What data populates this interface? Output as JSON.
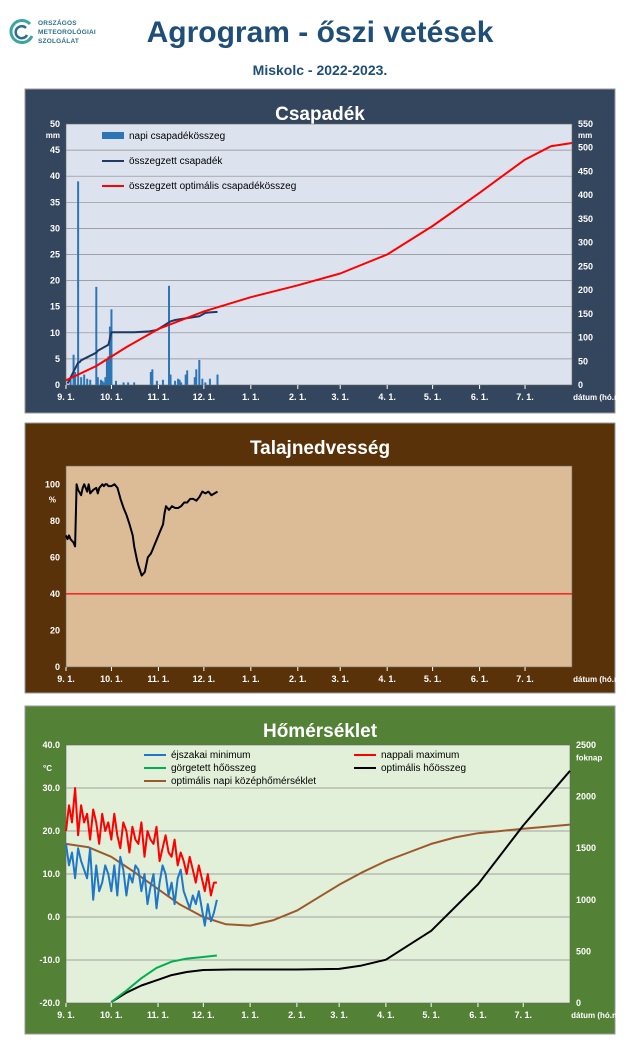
{
  "header": {
    "logo_lines": [
      "ORSZÁGOS",
      "METEOROLÓGIAI",
      "SZOLGÁLAT"
    ],
    "title": "Agrogram - őszi vetések",
    "subtitle": "Miskolc - 2022-2023."
  },
  "x_axis": {
    "tick_labels": [
      "9. 1.",
      "10. 1.",
      "11. 1.",
      "12. 1.",
      "1. 1.",
      "2. 1.",
      "3. 1.",
      "4. 1.",
      "5. 1.",
      "6. 1.",
      "7. 1."
    ],
    "tick_days": [
      0,
      30,
      61,
      91,
      122,
      153,
      181,
      212,
      242,
      273,
      303
    ],
    "range_days": [
      0,
      334
    ],
    "label": "dátum (hó.nap)"
  },
  "chart_data": [
    {
      "type": "bar+line",
      "title": "Csapadék",
      "y_label": "mm",
      "y2_label": "mm",
      "ylim": [
        0,
        50
      ],
      "yticks": [
        0,
        5,
        10,
        15,
        20,
        25,
        30,
        35,
        40,
        45,
        50
      ],
      "y2lim": [
        0,
        550
      ],
      "y2ticks": [
        0,
        50,
        100,
        150,
        200,
        250,
        300,
        350,
        400,
        450,
        500,
        550
      ],
      "grid": true,
      "legend_position": "top-left",
      "colors": {
        "bars": "#2e75b6",
        "cumulative": "#1f3864",
        "optimal": "#ff0000",
        "background": "#dde3ee",
        "frame": "#34465e"
      },
      "series": [
        {
          "name": "napi csapadékösszeg",
          "kind": "bar",
          "axis": "left",
          "x": [
            3,
            5,
            6,
            8,
            10,
            12,
            14,
            16,
            20,
            21,
            23,
            24,
            25,
            26,
            27,
            28,
            29,
            30,
            33,
            38,
            41,
            45,
            56,
            57,
            60,
            64,
            68,
            69,
            72,
            74,
            75,
            76,
            79,
            80,
            85,
            86,
            88,
            90,
            92,
            95,
            100
          ],
          "values": [
            1.2,
            5.8,
            2.5,
            39.0,
            1.5,
            2.0,
            1.2,
            1.0,
            18.8,
            1.5,
            1.0,
            0.8,
            0.5,
            1.5,
            5.0,
            5.5,
            11.2,
            14.5,
            0.8,
            0.5,
            0.5,
            0.5,
            2.5,
            3.0,
            0.8,
            1.0,
            19.0,
            2.0,
            0.8,
            1.2,
            1.0,
            0.5,
            2.0,
            2.8,
            1.5,
            3.0,
            4.8,
            1.2,
            0.5,
            1.2,
            2.0
          ]
        },
        {
          "name": "összegzett csapadék",
          "kind": "line",
          "axis": "right",
          "x": [
            1,
            8,
            9,
            10,
            20,
            21,
            28,
            29,
            30,
            45,
            55,
            60,
            68,
            69,
            72,
            80,
            88,
            92,
            95,
            100
          ],
          "y": [
            3,
            47,
            48,
            52,
            68,
            72,
            85,
            98,
            111,
            111,
            113,
            116,
            132,
            134,
            137,
            141,
            145,
            152,
            153,
            154
          ]
        },
        {
          "name": "összegzett optimális  csapadékösszeg",
          "kind": "line",
          "axis": "right",
          "x": [
            0,
            20,
            40,
            61,
            91,
            122,
            153,
            181,
            212,
            242,
            273,
            303,
            320,
            334
          ],
          "y": [
            10,
            40,
            80,
            118,
            155,
            185,
            210,
            235,
            275,
            335,
            405,
            475,
            503,
            510
          ]
        }
      ]
    },
    {
      "type": "line",
      "title": "Talajnedvesség",
      "y_label": "%",
      "ylim": [
        0,
        110
      ],
      "yticks": [
        0,
        20,
        40,
        60,
        80,
        100
      ],
      "grid": false,
      "threshold": 40,
      "colors": {
        "line": "#000000",
        "threshold": "#ff0000",
        "background": "#dcbc96",
        "frame": "#5a3209"
      },
      "series": [
        {
          "name": "talajnedvesség",
          "x": [
            0,
            1,
            2,
            3,
            5,
            6,
            7,
            8,
            10,
            11,
            12,
            14,
            15,
            16,
            18,
            20,
            21,
            22,
            24,
            25,
            26,
            27,
            28,
            30,
            32,
            34,
            36,
            38,
            40,
            42,
            44,
            45,
            46,
            47,
            48,
            50,
            51,
            52,
            53,
            54,
            55,
            56,
            57,
            58,
            60,
            62,
            64,
            65,
            66,
            68,
            70,
            72,
            74,
            76,
            78,
            80,
            82,
            84,
            86,
            88,
            90,
            92,
            94,
            96,
            98,
            100
          ],
          "y": [
            72,
            70,
            72,
            70,
            68,
            66,
            100,
            97,
            94,
            98,
            100,
            96,
            100,
            95,
            97,
            98,
            95,
            98,
            100,
            99,
            100,
            100,
            99,
            99,
            100,
            98,
            92,
            87,
            83,
            78,
            72,
            66,
            62,
            58,
            55,
            50,
            51,
            52,
            56,
            60,
            61,
            62,
            64,
            66,
            70,
            74,
            78,
            84,
            88,
            86,
            88,
            87,
            87,
            88,
            90,
            90,
            92,
            92,
            91,
            93,
            96,
            95,
            96,
            94,
            95,
            96
          ]
        }
      ]
    },
    {
      "type": "line",
      "title": "Hőmérséklet",
      "y_label": "°C",
      "y2_label": "foknap",
      "ylim": [
        -20,
        40
      ],
      "yticks": [
        -20,
        -10,
        0,
        10,
        20,
        30,
        40
      ],
      "y2lim": [
        0,
        2500
      ],
      "y2ticks": [
        0,
        500,
        1000,
        1500,
        2000,
        2500
      ],
      "grid": true,
      "legend_position": "top",
      "colors": {
        "background": "#e2efd9",
        "frame": "#538135"
      },
      "series": [
        {
          "name": "éjszakai minimum",
          "axis": "left",
          "color": "#1f77c8",
          "x": [
            0,
            2,
            4,
            6,
            8,
            10,
            12,
            14,
            16,
            18,
            20,
            22,
            24,
            26,
            28,
            30,
            32,
            34,
            36,
            38,
            40,
            42,
            44,
            46,
            48,
            50,
            52,
            54,
            56,
            58,
            60,
            62,
            64,
            66,
            68,
            70,
            72,
            74,
            76,
            78,
            80,
            82,
            84,
            86,
            88,
            90,
            92,
            94,
            96,
            98,
            100
          ],
          "y": [
            17,
            12,
            15,
            9,
            16,
            13,
            11,
            9,
            16,
            4,
            12,
            6,
            8,
            12,
            10,
            6,
            12,
            5,
            14,
            11,
            5,
            10,
            8,
            12,
            11,
            6,
            10,
            3,
            7,
            10,
            2,
            8,
            12,
            10,
            5,
            8,
            3,
            9,
            11,
            6,
            4,
            2,
            5,
            3,
            6,
            2,
            -2,
            3,
            -1,
            1,
            4
          ]
        },
        {
          "name": "nappali maximum",
          "axis": "left",
          "color": "#ff0000",
          "x": [
            0,
            2,
            4,
            6,
            8,
            10,
            12,
            14,
            16,
            18,
            20,
            22,
            24,
            26,
            28,
            30,
            32,
            34,
            36,
            38,
            40,
            42,
            44,
            46,
            48,
            50,
            52,
            54,
            56,
            58,
            60,
            62,
            64,
            66,
            68,
            70,
            72,
            74,
            76,
            78,
            80,
            82,
            84,
            86,
            88,
            90,
            92,
            94,
            96,
            98,
            100
          ],
          "y": [
            20,
            26,
            22,
            30,
            19,
            26,
            22,
            24,
            18,
            25,
            22,
            17,
            24,
            20,
            22,
            18,
            24,
            19,
            16,
            22,
            20,
            15,
            21,
            18,
            17,
            22,
            14,
            20,
            18,
            17,
            21,
            13,
            16,
            19,
            15,
            14,
            18,
            12,
            15,
            13,
            10,
            14,
            11,
            8,
            12,
            9,
            6,
            10,
            5,
            8,
            8
          ]
        },
        {
          "name": "görgetett hőösszeg",
          "axis": "right",
          "color": "#00b050",
          "x": [
            30,
            40,
            50,
            60,
            65,
            70,
            80,
            90,
            100
          ],
          "y": [
            10,
            120,
            240,
            340,
            370,
            400,
            430,
            445,
            460
          ]
        },
        {
          "name": "optimális hőösszeg",
          "axis": "right",
          "color": "#000000",
          "x": [
            30,
            40,
            50,
            61,
            70,
            80,
            91,
            110,
            122,
            153,
            181,
            195,
            212,
            242,
            273,
            303,
            334
          ],
          "y": [
            10,
            100,
            170,
            225,
            270,
            300,
            320,
            325,
            325,
            325,
            330,
            360,
            420,
            700,
            1150,
            1720,
            2250
          ]
        },
        {
          "name": "optimális napi középhőmérséklet",
          "axis": "left",
          "color": "#9c5a2c",
          "x": [
            0,
            15,
            30,
            45,
            61,
            75,
            91,
            106,
            122,
            137,
            153,
            167,
            181,
            197,
            212,
            227,
            242,
            258,
            273,
            288,
            303,
            318,
            334
          ],
          "y": [
            17.0,
            16.2,
            14.0,
            10.5,
            6.5,
            3.0,
            0.0,
            -1.7,
            -2.0,
            -0.8,
            1.5,
            4.5,
            7.5,
            10.5,
            13.0,
            15.0,
            17.0,
            18.5,
            19.5,
            20.0,
            20.5,
            21.0,
            21.5
          ]
        }
      ]
    }
  ]
}
